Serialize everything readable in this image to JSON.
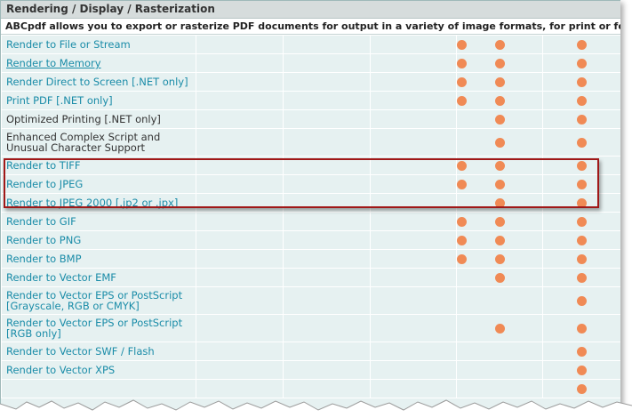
{
  "section": {
    "title": "Rendering / Display / Rasterization",
    "description": "ABCpdf allows you to export or rasterize PDF documents for output in a variety of image formats, for print or for display on screen."
  },
  "colors": {
    "link": "#1a8ca8",
    "dot": "#f08a55",
    "highlight_border": "#a01818",
    "row_background": "#e6f1f1"
  },
  "rows": [
    {
      "label": "Render to File or Stream",
      "marks": [
        false,
        false,
        false,
        false,
        true,
        true,
        true
      ]
    },
    {
      "label": "Render to Memory",
      "marks": [
        false,
        false,
        false,
        false,
        true,
        true,
        true
      ]
    },
    {
      "label": "Render Direct to Screen [.NET only]",
      "marks": [
        false,
        false,
        false,
        false,
        true,
        true,
        true
      ]
    },
    {
      "label": "Print PDF [.NET only]",
      "marks": [
        false,
        false,
        false,
        false,
        true,
        true,
        true
      ]
    },
    {
      "label": "Optimized Printing [.NET only]",
      "marks": [
        false,
        false,
        false,
        false,
        false,
        true,
        true
      ]
    },
    {
      "label": "Enhanced Complex Script and Unusual Character Support",
      "marks": [
        false,
        false,
        false,
        false,
        false,
        true,
        true
      ]
    },
    {
      "label": "Render to TIFF",
      "marks": [
        false,
        false,
        false,
        false,
        true,
        true,
        true
      ]
    },
    {
      "label": "Render to JPEG",
      "marks": [
        false,
        false,
        false,
        false,
        true,
        true,
        true
      ]
    },
    {
      "label": "Render to JPEG 2000 [.jp2 or .jpx]",
      "marks": [
        false,
        false,
        false,
        false,
        false,
        true,
        true
      ]
    },
    {
      "label": "Render to GIF",
      "marks": [
        false,
        false,
        false,
        false,
        true,
        true,
        true
      ]
    },
    {
      "label": "Render to PNG",
      "marks": [
        false,
        false,
        false,
        false,
        true,
        true,
        true
      ]
    },
    {
      "label": "Render to BMP",
      "marks": [
        false,
        false,
        false,
        false,
        true,
        true,
        true
      ]
    },
    {
      "label": "Render to Vector EMF",
      "marks": [
        false,
        false,
        false,
        false,
        false,
        true,
        true
      ]
    },
    {
      "label": "Render to Vector EPS or PostScript [Grayscale, RGB or CMYK]",
      "marks": [
        false,
        false,
        false,
        false,
        false,
        false,
        true
      ]
    },
    {
      "label": "Render to Vector EPS or PostScript [RGB only]",
      "marks": [
        false,
        false,
        false,
        false,
        false,
        true,
        true
      ]
    },
    {
      "label": "Render to Vector SWF / Flash",
      "marks": [
        false,
        false,
        false,
        false,
        false,
        false,
        true
      ]
    },
    {
      "label": "Render to Vector XPS",
      "marks": [
        false,
        false,
        false,
        false,
        false,
        false,
        true
      ]
    },
    {
      "label": "",
      "marks": [
        false,
        false,
        false,
        false,
        false,
        false,
        true
      ]
    }
  ]
}
